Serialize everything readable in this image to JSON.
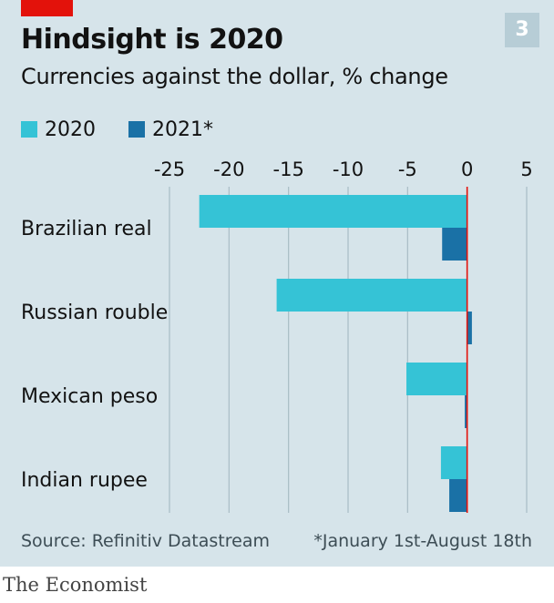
{
  "header": {
    "title": "Hindsight is 2020",
    "subtitle": "Currencies against the dollar, % change",
    "chart_number": "3"
  },
  "footer": {
    "source": "Source: Refinitiv Datastream",
    "footnote": "*January 1st-August 18th",
    "brand": "The Economist"
  },
  "colors": {
    "series_2020": "#35c3d6",
    "series_2021": "#1a71a6",
    "zero_line": "#e3120b",
    "gridline": "#a8bcc5",
    "panel_background": "#d6e4ea",
    "tag": "#e3120b"
  },
  "chart_data": {
    "type": "bar",
    "orientation": "horizontal",
    "title": "Hindsight is 2020",
    "subtitle": "Currencies against the dollar, % change",
    "categories": [
      "Brazilian real",
      "Russian rouble",
      "Mexican peso",
      "Indian rupee"
    ],
    "series": [
      {
        "name": "2020",
        "values": [
          -22.5,
          -16.0,
          -5.1,
          -2.2
        ]
      },
      {
        "name": "2021*",
        "values": [
          -2.1,
          0.4,
          -0.2,
          -1.5
        ]
      }
    ],
    "xlim": [
      -25,
      5
    ],
    "xticks": [
      "-25",
      "-20",
      "-15",
      "-10",
      "-5",
      "0",
      "5"
    ],
    "xtick_values": [
      -25,
      -20,
      -15,
      -10,
      -5,
      0,
      5
    ],
    "grid": true,
    "legend_position": "top-left",
    "xlabel": "",
    "ylabel": ""
  }
}
